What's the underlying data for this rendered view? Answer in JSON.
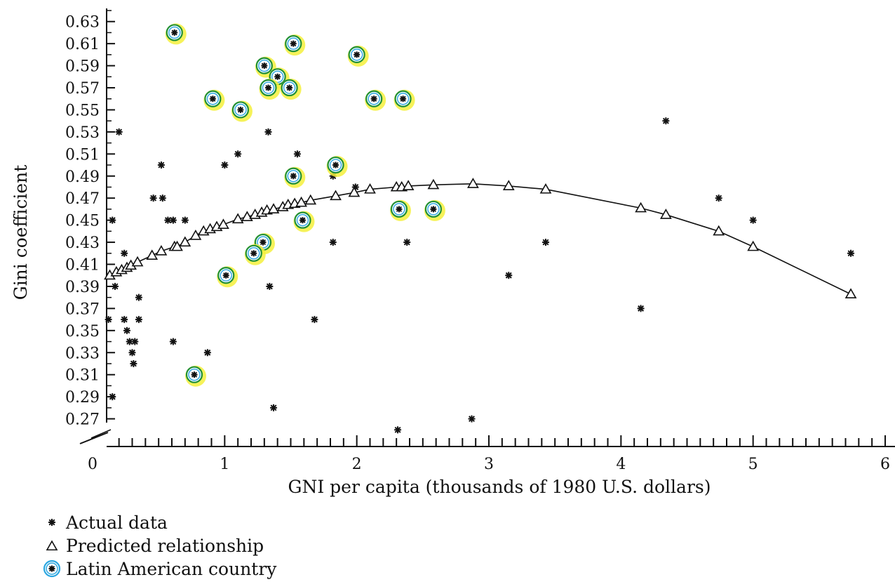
{
  "chart_data": {
    "type": "scatter",
    "title": "",
    "xlabel": "GNI per capita (thousands of 1980 U.S. dollars)",
    "ylabel": "Gini coefficient",
    "xlim": [
      0,
      6
    ],
    "ylim": [
      0.25,
      0.64
    ],
    "x_ticks": [
      "0",
      "1",
      "2",
      "3",
      "4",
      "5",
      "6"
    ],
    "y_ticks": [
      "0.27",
      "0.29",
      "0.31",
      "0.33",
      "0.35",
      "0.37",
      "0.39",
      "0.41",
      "0.43",
      "0.45",
      "0.47",
      "0.49",
      "0.51",
      "0.53",
      "0.55",
      "0.57",
      "0.59",
      "0.61",
      "0.63"
    ],
    "y_axis_break": true,
    "legend_position": "bottom-left",
    "colors": {
      "marker": "#111111",
      "latin_ring": "#2aa6e0",
      "highlight": "#f4f03c",
      "highlight_ring": "#1f8f3a",
      "curve": "#111111"
    },
    "legend": [
      {
        "symbol": "asterisk",
        "label": "Actual data"
      },
      {
        "symbol": "triangle",
        "label": "Predicted relationship"
      },
      {
        "symbol": "latin",
        "label": "Latin American country"
      }
    ],
    "series": [
      {
        "name": "Actual data",
        "marker": "asterisk",
        "points": [
          [
            0.12,
            0.36
          ],
          [
            0.15,
            0.45
          ],
          [
            0.15,
            0.29
          ],
          [
            0.17,
            0.39
          ],
          [
            0.2,
            0.53
          ],
          [
            0.24,
            0.42
          ],
          [
            0.24,
            0.36
          ],
          [
            0.26,
            0.35
          ],
          [
            0.28,
            0.34
          ],
          [
            0.3,
            0.33
          ],
          [
            0.31,
            0.32
          ],
          [
            0.32,
            0.34
          ],
          [
            0.35,
            0.38
          ],
          [
            0.35,
            0.36
          ],
          [
            0.46,
            0.47
          ],
          [
            0.52,
            0.5
          ],
          [
            0.53,
            0.47
          ],
          [
            0.57,
            0.45
          ],
          [
            0.61,
            0.45
          ],
          [
            0.61,
            0.34
          ],
          [
            0.7,
            0.45
          ],
          [
            0.87,
            0.33
          ],
          [
            1.0,
            0.5
          ],
          [
            1.1,
            0.51
          ],
          [
            1.33,
            0.53
          ],
          [
            1.34,
            0.39
          ],
          [
            1.37,
            0.28
          ],
          [
            1.55,
            0.51
          ],
          [
            1.68,
            0.36
          ],
          [
            1.82,
            0.49
          ],
          [
            1.82,
            0.43
          ],
          [
            1.99,
            0.48
          ],
          [
            2.31,
            0.26
          ],
          [
            2.38,
            0.43
          ],
          [
            2.87,
            0.27
          ],
          [
            3.15,
            0.4
          ],
          [
            3.43,
            0.43
          ],
          [
            4.15,
            0.37
          ],
          [
            4.34,
            0.54
          ],
          [
            4.74,
            0.47
          ],
          [
            5.0,
            0.45
          ],
          [
            5.74,
            0.42
          ]
        ]
      },
      {
        "name": "Predicted relationship",
        "marker": "triangle",
        "points": [
          [
            0.13,
            0.4
          ],
          [
            0.18,
            0.403
          ],
          [
            0.22,
            0.405
          ],
          [
            0.26,
            0.407
          ],
          [
            0.29,
            0.409
          ],
          [
            0.34,
            0.412
          ],
          [
            0.45,
            0.418
          ],
          [
            0.52,
            0.422
          ],
          [
            0.62,
            0.426
          ],
          [
            0.64,
            0.426
          ],
          [
            0.7,
            0.43
          ],
          [
            0.78,
            0.436
          ],
          [
            0.84,
            0.44
          ],
          [
            0.89,
            0.442
          ],
          [
            0.94,
            0.444
          ],
          [
            0.99,
            0.446
          ],
          [
            1.1,
            0.451
          ],
          [
            1.17,
            0.453
          ],
          [
            1.23,
            0.455
          ],
          [
            1.28,
            0.457
          ],
          [
            1.32,
            0.459
          ],
          [
            1.37,
            0.46
          ],
          [
            1.44,
            0.462
          ],
          [
            1.48,
            0.464
          ],
          [
            1.53,
            0.465
          ],
          [
            1.58,
            0.466
          ],
          [
            1.65,
            0.468
          ],
          [
            1.84,
            0.472
          ],
          [
            1.98,
            0.475
          ],
          [
            2.1,
            0.478
          ],
          [
            2.3,
            0.48
          ],
          [
            2.34,
            0.48
          ],
          [
            2.39,
            0.481
          ],
          [
            2.58,
            0.482
          ],
          [
            2.88,
            0.483
          ],
          [
            3.15,
            0.481
          ],
          [
            3.43,
            0.478
          ],
          [
            4.15,
            0.461
          ],
          [
            4.34,
            0.455
          ],
          [
            4.74,
            0.44
          ],
          [
            5.0,
            0.426
          ],
          [
            5.74,
            0.383
          ]
        ]
      },
      {
        "name": "Latin American country",
        "marker": "latin",
        "points": [
          [
            0.62,
            0.62
          ],
          [
            0.91,
            0.56
          ],
          [
            1.52,
            0.61
          ],
          [
            2.0,
            0.6
          ],
          [
            1.3,
            0.59
          ],
          [
            1.4,
            0.58
          ],
          [
            1.33,
            0.57
          ],
          [
            1.49,
            0.57
          ],
          [
            1.12,
            0.55
          ],
          [
            2.13,
            0.56
          ],
          [
            2.35,
            0.56
          ],
          [
            1.84,
            0.5
          ],
          [
            1.52,
            0.49
          ],
          [
            2.32,
            0.46
          ],
          [
            2.58,
            0.46
          ],
          [
            1.59,
            0.45
          ],
          [
            1.29,
            0.43
          ],
          [
            1.22,
            0.42
          ],
          [
            1.01,
            0.4
          ],
          [
            0.77,
            0.31
          ]
        ]
      }
    ]
  }
}
